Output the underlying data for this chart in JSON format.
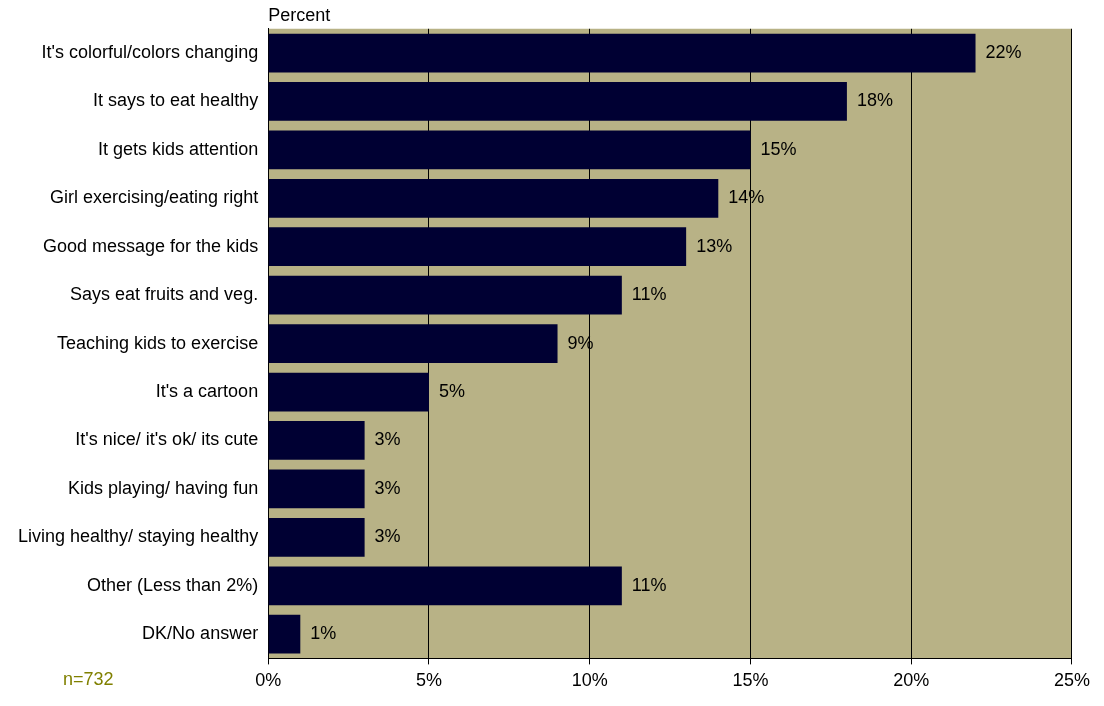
{
  "chart_data": {
    "type": "bar",
    "orientation": "horizontal",
    "xlabel": "Percent",
    "categories": [
      "It's colorful/colors changing",
      "It says to eat healthy",
      "It gets kids attention",
      "Girl exercising/eating right",
      "Good message for the kids",
      "Says eat fruits and veg.",
      "Teaching kids to exercise",
      "It's a cartoon",
      "It's nice/ it's ok/ its cute",
      "Kids playing/ having fun",
      "Living healthy/ staying healthy",
      "Other (Less than 2%)",
      "DK/No answer"
    ],
    "values": [
      22,
      18,
      15,
      14,
      13,
      11,
      9,
      5,
      3,
      3,
      3,
      11,
      1
    ],
    "value_labels": [
      "22%",
      "18%",
      "15%",
      "14%",
      "13%",
      "11%",
      "9%",
      "5%",
      "3%",
      "3%",
      "3%",
      "11%",
      "1%"
    ],
    "color": "#000033",
    "xlim": [
      0,
      25
    ],
    "xticks": [
      {
        "value": 0,
        "label": "0%"
      },
      {
        "value": 5,
        "label": "5%"
      },
      {
        "value": 10,
        "label": "10%"
      },
      {
        "value": 15,
        "label": "15%"
      },
      {
        "value": 20,
        "label": "20%"
      },
      {
        "value": 25,
        "label": "25%"
      }
    ],
    "grid": "x",
    "legend": false,
    "annotations": [
      "n=732"
    ]
  }
}
